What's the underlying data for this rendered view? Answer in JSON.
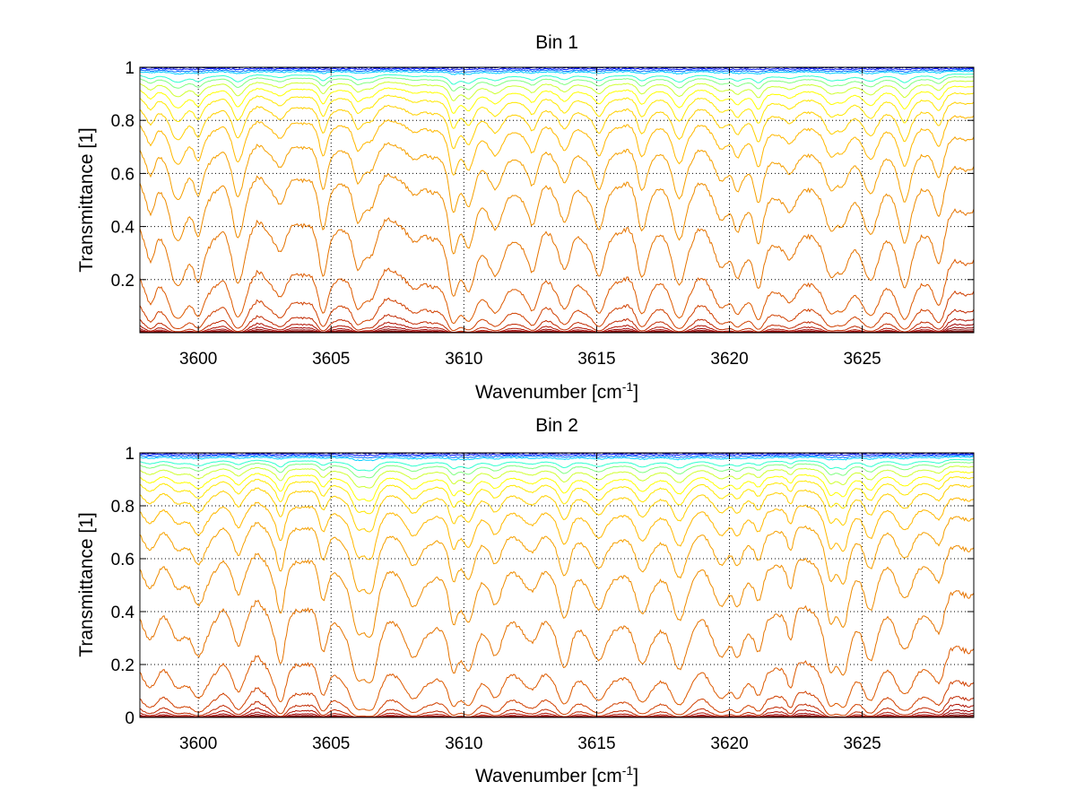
{
  "chart_data": [
    {
      "type": "line",
      "title": "Bin 1",
      "xlabel": "Wavenumber [cm",
      "xlabel_sup": "-1",
      "xlabel_end": "]",
      "ylabel": "Transmittance [1]",
      "xlim": [
        3597.8,
        3629.2
      ],
      "ylim": [
        0,
        1
      ],
      "grid": true,
      "xticks": [
        3600,
        3605,
        3610,
        3615,
        3620,
        3625
      ],
      "xtick_labels": [
        "3600",
        "3605",
        "3610",
        "3615",
        "3620",
        "3625"
      ],
      "yticks": [
        0.2,
        0.4,
        0.6,
        0.8,
        1
      ],
      "ytick_labels": [
        "0.2",
        "0.4",
        "0.6",
        "0.8",
        "1"
      ],
      "absorption_lines": [
        3598.2,
        3599.2,
        3600.0,
        3601.5,
        3603.1,
        3604.7,
        3606.0,
        3606.5,
        3608.1,
        3609.6,
        3610.2,
        3611.2,
        3612.6,
        3613.8,
        3615.1,
        3616.7,
        3618.1,
        3619.7,
        3620.3,
        3621.1,
        3622.3,
        3623.8,
        3624.3,
        3625.3,
        3626.6,
        3627.9
      ],
      "series_baselines": [
        0.999,
        0.995,
        0.99,
        0.985,
        0.975,
        0.965,
        0.95,
        0.93,
        0.905,
        0.87,
        0.82,
        0.74,
        0.63,
        0.47,
        0.28,
        0.16,
        0.09,
        0.055,
        0.035,
        0.022,
        0.013,
        0.007,
        0.003
      ],
      "series_colors": [
        "#00008f",
        "#0010ff",
        "#0070ff",
        "#00cfff",
        "#30ffcf",
        "#80ff80",
        "#cfff30",
        "#ffff00",
        "#ffe800",
        "#ffd000",
        "#ffb800",
        "#f5a000",
        "#ee8c00",
        "#e57300",
        "#dd5a00",
        "#d04000",
        "#c02800",
        "#b01000",
        "#a00000",
        "#900000",
        "#800000",
        "#700000",
        "#600000"
      ]
    },
    {
      "type": "line",
      "title": "Bin 2",
      "xlabel": "Wavenumber [cm",
      "xlabel_sup": "-1",
      "xlabel_end": "]",
      "ylabel": "Transmittance [1]",
      "xlim": [
        3597.8,
        3629.2
      ],
      "ylim": [
        0,
        1
      ],
      "grid": true,
      "xticks": [
        3600,
        3605,
        3610,
        3615,
        3620,
        3625
      ],
      "xtick_labels": [
        "3600",
        "3605",
        "3610",
        "3615",
        "3620",
        "3625"
      ],
      "yticks": [
        0,
        0.2,
        0.4,
        0.6,
        0.8,
        1
      ],
      "ytick_labels": [
        "0",
        "0.2",
        "0.4",
        "0.6",
        "0.8",
        "1"
      ],
      "absorption_lines": [
        3598.2,
        3599.2,
        3600.0,
        3601.5,
        3603.1,
        3604.7,
        3606.0,
        3606.5,
        3608.1,
        3609.6,
        3610.2,
        3611.2,
        3612.6,
        3613.8,
        3615.1,
        3616.7,
        3618.1,
        3619.7,
        3620.3,
        3621.1,
        3622.3,
        3623.8,
        3624.3,
        3625.3,
        3626.6,
        3627.9
      ],
      "series_baselines": [
        0.999,
        0.995,
        0.99,
        0.985,
        0.975,
        0.965,
        0.95,
        0.93,
        0.91,
        0.88,
        0.83,
        0.76,
        0.65,
        0.48,
        0.27,
        0.14,
        0.08,
        0.05,
        0.03,
        0.018,
        0.01,
        0.005,
        0.002
      ],
      "series_colors": [
        "#00008f",
        "#0010ff",
        "#0070ff",
        "#00cfff",
        "#30ffcf",
        "#80ff80",
        "#cfff30",
        "#ffff00",
        "#ffe800",
        "#ffd000",
        "#ffb800",
        "#f5a000",
        "#ee8c00",
        "#e57300",
        "#dd5a00",
        "#d04000",
        "#c02800",
        "#b01000",
        "#a00000",
        "#900000",
        "#800000",
        "#700000",
        "#600000"
      ]
    }
  ]
}
